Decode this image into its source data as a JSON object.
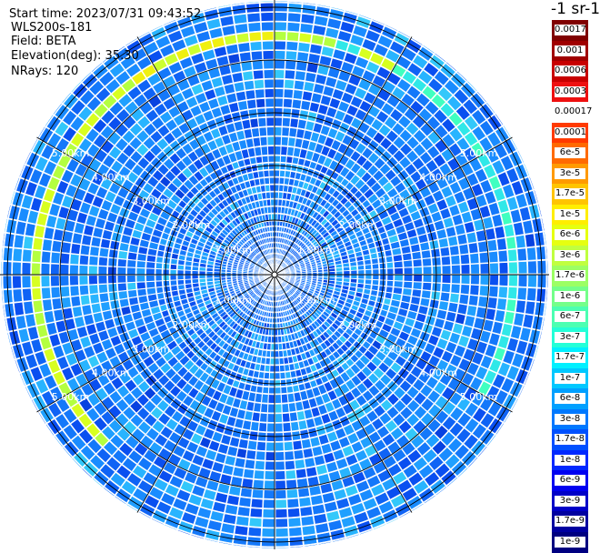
{
  "header": {
    "start_time": "Start time: 2023/07/31 09:43:52",
    "instrument": "WLS200s-181",
    "field": "Field: BETA",
    "elevation": "Elevation(deg): 35.30",
    "nrays": "NRays: 120"
  },
  "colorbar": {
    "unit": "-1 sr-1",
    "labels": [
      "0.0017",
      "0.001",
      "0.0006",
      "0.0003",
      "0.00017",
      "0.0001",
      "6e-5",
      "3e-5",
      "1.7e-5",
      "1e-5",
      "6e-6",
      "3e-6",
      "1.7e-6",
      "1e-6",
      "6e-7",
      "3e-7",
      "1.7e-7",
      "1e-7",
      "6e-8",
      "3e-8",
      "1.7e-8",
      "1e-8",
      "6e-9",
      "3e-9",
      "1.7e-9",
      "1e-9"
    ],
    "colors": [
      "#800000",
      "#a00000",
      "#c80000",
      "#ee1010",
      "#ffffff",
      "#ff3a00",
      "#ff6a00",
      "#ff9a00",
      "#ffc400",
      "#ffee00",
      "#e6ff10",
      "#c0ff40",
      "#9cff64",
      "#74ff8a",
      "#4cffb2",
      "#24ffd8",
      "#00f0ff",
      "#00c8ff",
      "#00a0ff",
      "#0078ff",
      "#0050ff",
      "#0028ff",
      "#0000f0",
      "#0000c8",
      "#0000a0",
      "#000080"
    ]
  },
  "range_labels": {
    "r1": "1.00km",
    "r2": "2.00km",
    "r3": "3.00km",
    "r4": "4.00km",
    "r5": "5.00km"
  }
}
